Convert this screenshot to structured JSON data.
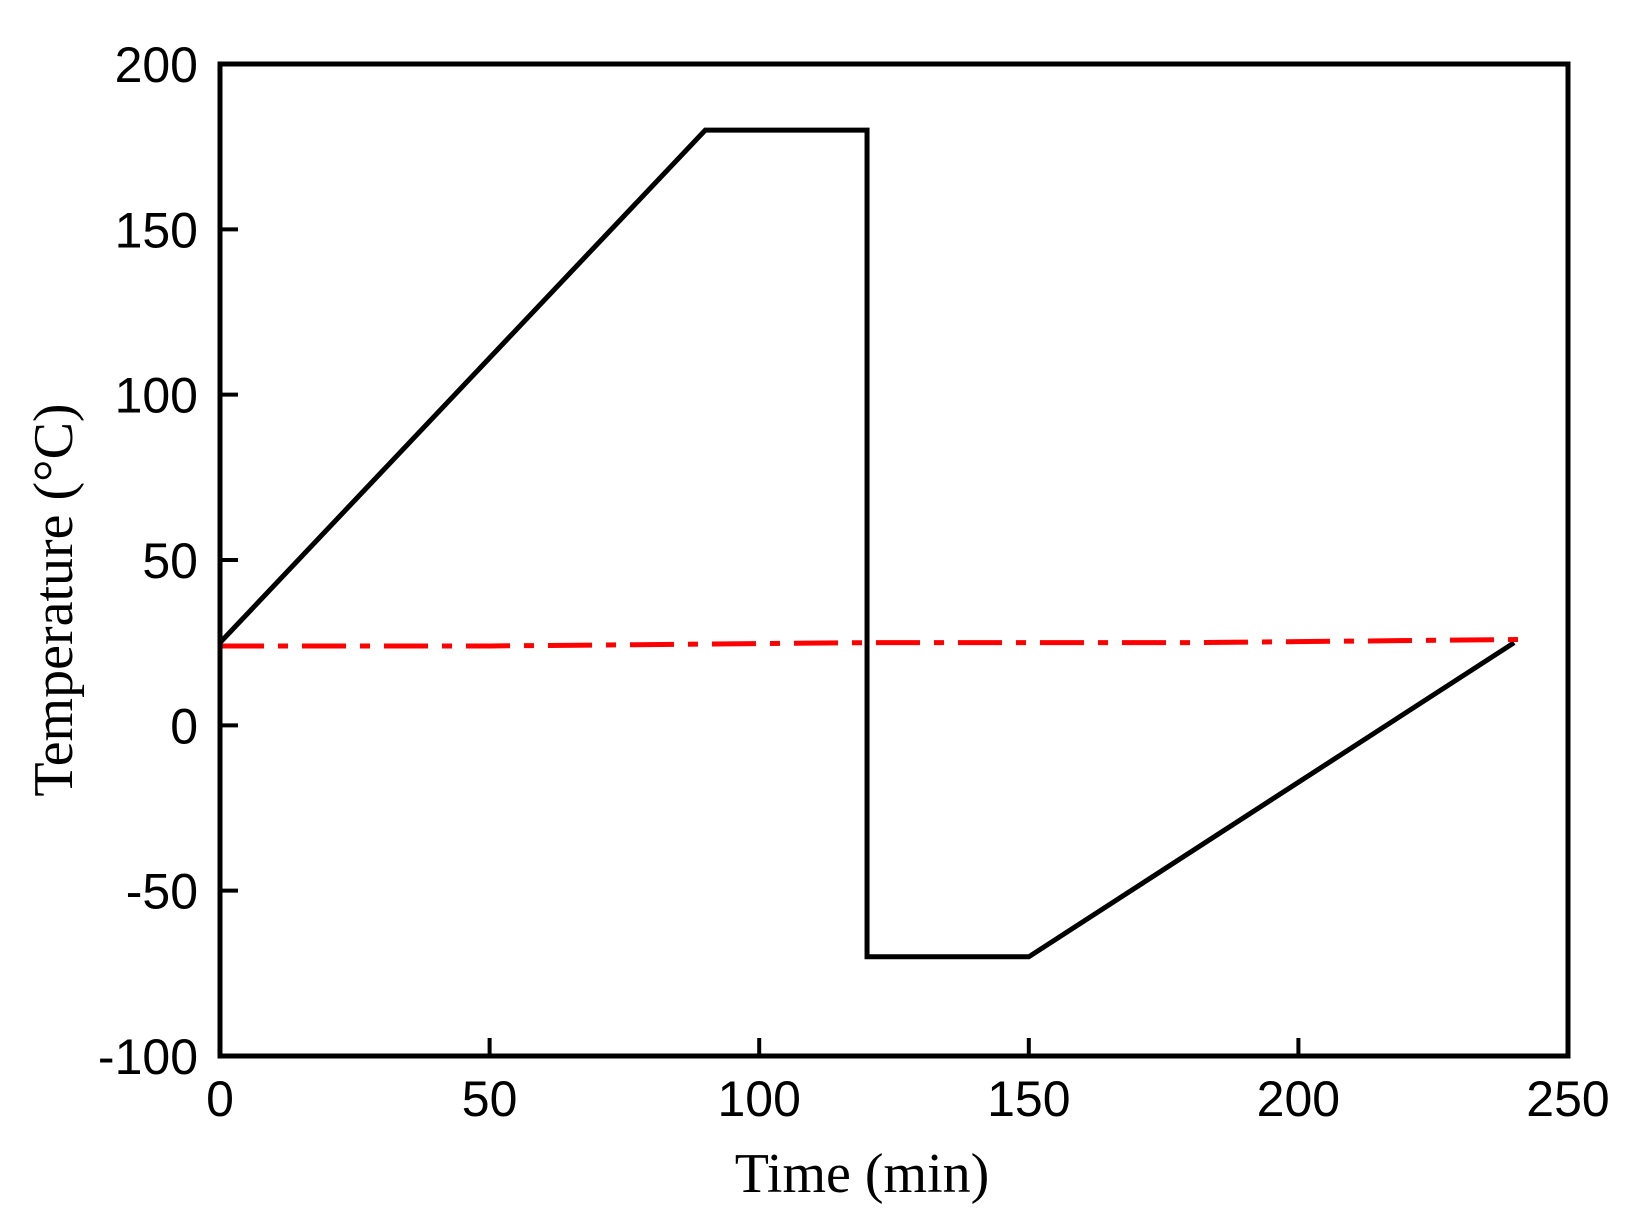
{
  "chart_data": {
    "type": "line",
    "title": "",
    "xlabel": "Time (min)",
    "ylabel": "Temperature (°C)",
    "xlim": [
      0,
      250
    ],
    "ylim": [
      -100,
      200
    ],
    "x_ticks": [
      0,
      50,
      100,
      150,
      200,
      250
    ],
    "y_ticks": [
      -100,
      -50,
      0,
      50,
      100,
      150,
      200
    ],
    "x_tick_labels": [
      "0",
      "50",
      "100",
      "150",
      "200",
      "250"
    ],
    "y_tick_labels": [
      "-100",
      "-50",
      "0",
      "50",
      "100",
      "150",
      "200"
    ],
    "grid": false,
    "legend": "none",
    "series": [
      {
        "color": "#000000",
        "style": "solid",
        "x": [
          0,
          90,
          120,
          120,
          150,
          240
        ],
        "y": [
          25,
          180,
          180,
          -70,
          -70,
          25
        ]
      },
      {
        "color": "#ff0000",
        "style": "dash-dot",
        "x": [
          0,
          50,
          120,
          180,
          243
        ],
        "y": [
          24,
          24,
          25,
          25,
          26
        ]
      }
    ]
  }
}
